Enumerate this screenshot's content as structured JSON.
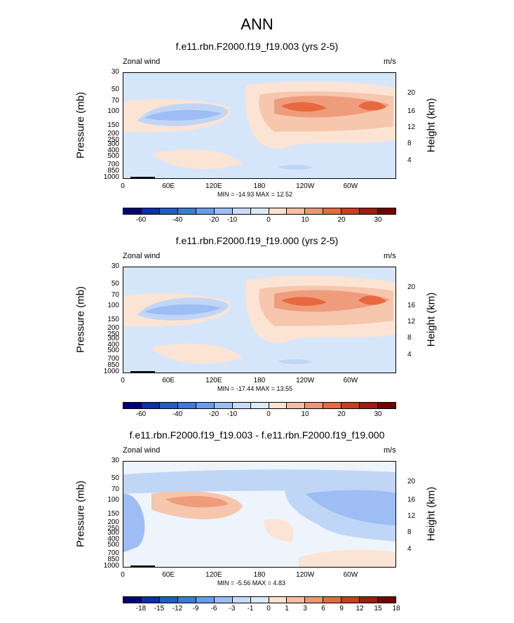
{
  "title": "ANN",
  "colors": {
    "abs_scale": [
      "#00007f",
      "#0a2fb5",
      "#1f5ccf",
      "#3b7ae0",
      "#6a9bee",
      "#9dbdf4",
      "#c7dcf8",
      "#dbe9fb",
      "#fde3cf",
      "#f6bda5",
      "#ef9576",
      "#e8683f",
      "#d13a1e",
      "#a21a10",
      "#730303"
    ],
    "diff_scale": [
      "#00007f",
      "#0a2fb5",
      "#1f5ccf",
      "#3b7ae0",
      "#6a9bee",
      "#9dbdf4",
      "#c7dcf8",
      "#dbe9fb",
      "#fde3cf",
      "#f6bda5",
      "#ef9576",
      "#e8683f",
      "#d13a1e",
      "#a21a10",
      "#730303"
    ]
  },
  "chart_data": [
    {
      "type": "heatmap",
      "title": "f.e11.rbn.F2000.f19_f19.003 (yrs 2-5)",
      "left_label": "Zonal wind",
      "right_label": "m/s",
      "ylabel": "Pressure (mb)",
      "y2label": "Height (km)",
      "y_ticks": [
        "30",
        "50",
        "70",
        "100",
        "150",
        "200",
        "250",
        "300",
        "400",
        "500",
        "700",
        "850",
        "1000"
      ],
      "y2_ticks": [
        "20",
        "16",
        "12",
        "8",
        "4"
      ],
      "x_ticks": [
        "0",
        "60E",
        "120E",
        "180",
        "120W",
        "60W"
      ],
      "min_max": "MIN = -14.93  MAX =  12.52",
      "colorbar_labels": [
        "-60",
        "-40",
        "-20",
        "-10",
        "0",
        "10",
        "20",
        "30"
      ]
    },
    {
      "type": "heatmap",
      "title": "f.e11.rbn.F2000.f19_f19.000 (yrs 2-5)",
      "left_label": "Zonal wind",
      "right_label": "m/s",
      "ylabel": "Pressure (mb)",
      "y2label": "Height (km)",
      "y_ticks": [
        "30",
        "50",
        "70",
        "100",
        "150",
        "200",
        "250",
        "300",
        "400",
        "500",
        "700",
        "850",
        "1000"
      ],
      "y2_ticks": [
        "20",
        "16",
        "12",
        "8",
        "4"
      ],
      "x_ticks": [
        "0",
        "60E",
        "120E",
        "180",
        "120W",
        "60W"
      ],
      "min_max": "MIN = -17.44  MAX =  13.55",
      "colorbar_labels": [
        "-60",
        "-40",
        "-20",
        "-10",
        "0",
        "10",
        "20",
        "30"
      ]
    },
    {
      "type": "heatmap",
      "title": "f.e11.rbn.F2000.f19_f19.003 - f.e11.rbn.F2000.f19_f19.000",
      "left_label": "Zonal wind",
      "right_label": "m/s",
      "ylabel": "Pressure (mb)",
      "y2label": "Height (km)",
      "y_ticks": [
        "30",
        "50",
        "70",
        "100",
        "150",
        "200",
        "250",
        "300",
        "400",
        "500",
        "700",
        "850",
        "1000"
      ],
      "y2_ticks": [
        "20",
        "16",
        "12",
        "8",
        "4"
      ],
      "x_ticks": [
        "0",
        "60E",
        "120E",
        "180",
        "120W",
        "60W"
      ],
      "min_max": "MIN = -5.56  MAX =  4.83",
      "colorbar_labels": [
        "-18",
        "-15",
        "-12",
        "-9",
        "-6",
        "-3",
        "-1",
        "0",
        "1",
        "3",
        "6",
        "9",
        "12",
        "15",
        "18"
      ]
    }
  ]
}
